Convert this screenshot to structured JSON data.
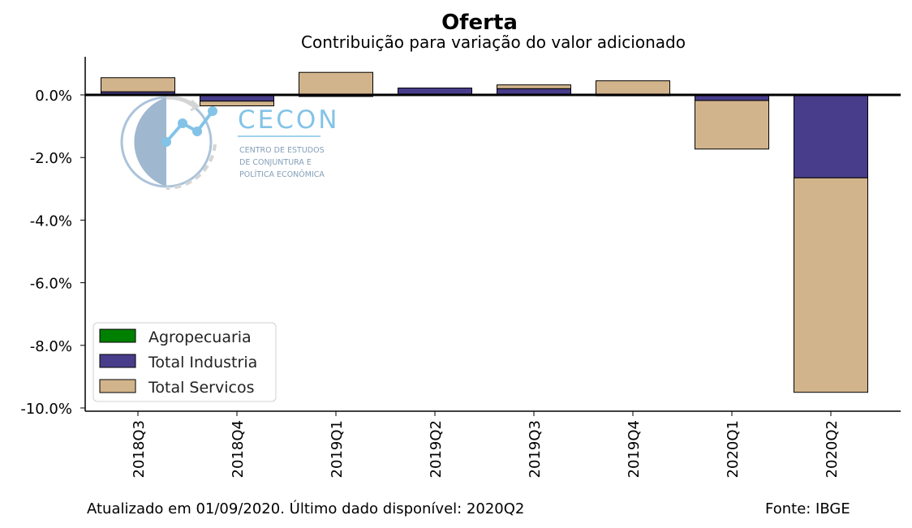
{
  "chart_data": {
    "type": "bar",
    "stacked": true,
    "title": "Oferta",
    "subtitle": "Contribuição para variação do valor adicionado",
    "categories": [
      "2018Q3",
      "2018Q4",
      "2019Q1",
      "2019Q2",
      "2019Q3",
      "2019Q4",
      "2020Q1",
      "2020Q2"
    ],
    "series": [
      {
        "name": "Agropecuaria",
        "color": "#008000",
        "values": [
          0.0,
          0.0,
          0.0,
          0.0,
          0.0,
          0.0,
          0.0,
          0.0
        ]
      },
      {
        "name": "Total Industria",
        "color": "#483D8B",
        "values": [
          0.1,
          -0.2,
          -0.05,
          0.22,
          0.2,
          -0.03,
          -0.18,
          -2.65
        ]
      },
      {
        "name": "Total Servicos",
        "color": "#D2B48C",
        "values": [
          0.45,
          -0.15,
          0.72,
          0.0,
          0.12,
          0.45,
          -1.55,
          -6.85
        ]
      }
    ],
    "yticks": [
      "0.0%",
      "-2.0%",
      "-4.0%",
      "-6.0%",
      "-8.0%",
      "-10.0%"
    ],
    "ytick_values": [
      0,
      -2,
      -4,
      -6,
      -8,
      -10
    ],
    "ylim": [
      -10,
      1.2
    ],
    "legend_position": "lower-left",
    "grid": false
  },
  "footer": {
    "left": "Atualizado em 01/09/2020. Último dado disponível: 2020Q2",
    "right": "Fonte: IBGE"
  },
  "logo": {
    "name": "CECON",
    "line1": "CENTRO DE ESTUDOS",
    "line2": "DE CONJUNTURA E",
    "line3": "POLÍTICA ECONÔMICA"
  }
}
